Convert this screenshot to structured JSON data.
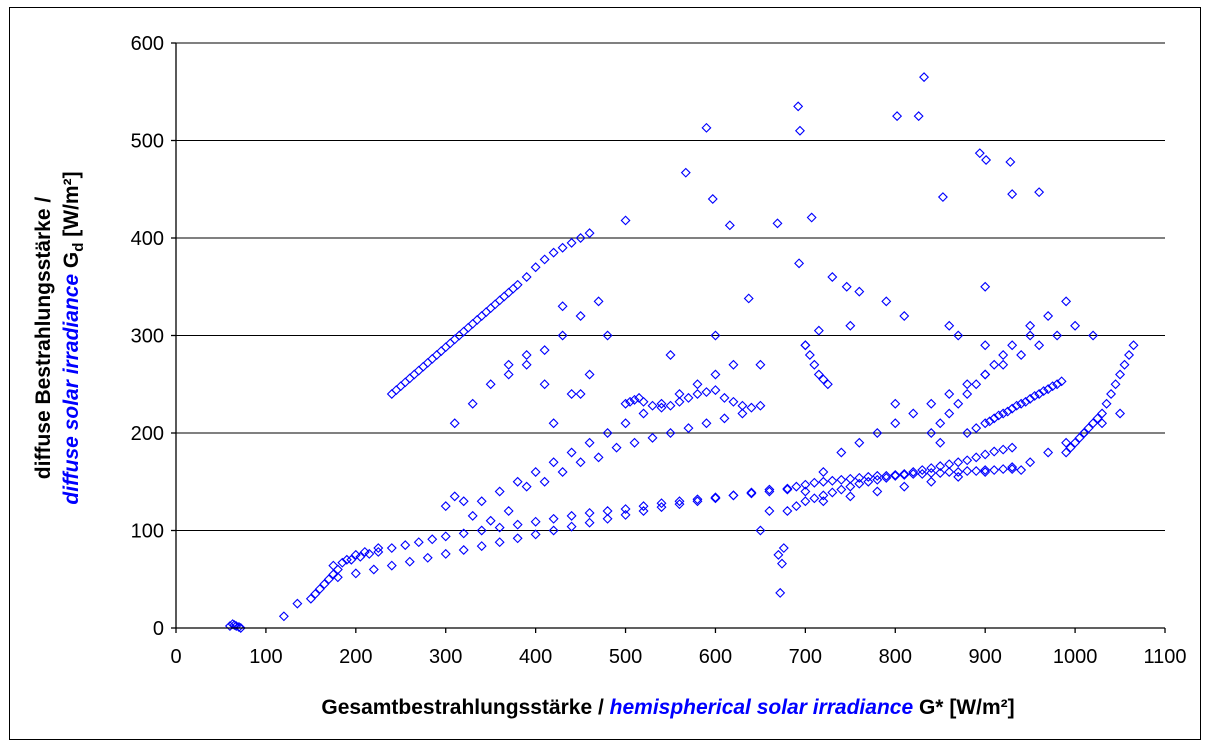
{
  "chart_data": {
    "type": "scatter",
    "title": "",
    "xlabel": {
      "part1": "Gesamtbestrahlungsstärke / ",
      "part2": "hemispherical solar irradiance",
      "part3": " G* [W/m²]"
    },
    "ylabel": {
      "line1": "diffuse Bestrahlungsstärke /",
      "line2_italic": "diffuse solar irradiance",
      "line2_symbol": " G",
      "line2_sub": "d",
      "line2_unit": " [W/m²]"
    },
    "xlim": [
      0,
      1100
    ],
    "ylim": [
      0,
      600
    ],
    "x_ticks": [
      "0",
      "100",
      "200",
      "300",
      "400",
      "500",
      "600",
      "700",
      "800",
      "900",
      "1000",
      "1100"
    ],
    "y_ticks": [
      "0",
      "100",
      "200",
      "300",
      "400",
      "500",
      "600"
    ],
    "grid": "horizontal",
    "marker": "diamond",
    "marker_color": "#0000ff",
    "series": [
      {
        "x": [
          60,
          63,
          65,
          67,
          70,
          72,
          120,
          135,
          150,
          155,
          160,
          165,
          170,
          175,
          180,
          190,
          200,
          210,
          225,
          175,
          185,
          195,
          205,
          215,
          225,
          240,
          255,
          270,
          285,
          300,
          320,
          340,
          360,
          380,
          400,
          420,
          440,
          460,
          480,
          500,
          520,
          540,
          560,
          580,
          600,
          620,
          640,
          660,
          680,
          180,
          200,
          220,
          240,
          260,
          280,
          300,
          320,
          340,
          360,
          380,
          400,
          420,
          440,
          460,
          480,
          500,
          520,
          540,
          560,
          580,
          600,
          620,
          640,
          660,
          240,
          245,
          250,
          255,
          260,
          265,
          270,
          275,
          280,
          285,
          290,
          295,
          300,
          305,
          310,
          315,
          320,
          325,
          330,
          335,
          340,
          345,
          350,
          355,
          360,
          365,
          370,
          375,
          380,
          390,
          400,
          410,
          420,
          430,
          440,
          450,
          460,
          680,
          690,
          700,
          710,
          720,
          730,
          740,
          750,
          760,
          770,
          780,
          790,
          800,
          810,
          820,
          830,
          840,
          850,
          860,
          870,
          880,
          890,
          900,
          910,
          920,
          930,
          940,
          700,
          710,
          720,
          730,
          740,
          750,
          760,
          770,
          780,
          790,
          800,
          810,
          820,
          830,
          840,
          850,
          860,
          870,
          880,
          890,
          900,
          910,
          920,
          930,
          880,
          890,
          900,
          905,
          910,
          915,
          920,
          925,
          930,
          935,
          940,
          945,
          950,
          955,
          960,
          965,
          970,
          975,
          980,
          985,
          990,
          995,
          1000,
          1005,
          1010,
          1015,
          1020,
          1025,
          1030,
          1035,
          1040,
          1045,
          1050,
          1055,
          1060,
          1065,
          500,
          505,
          510,
          515,
          520,
          530,
          540,
          550,
          560,
          570,
          580,
          590,
          600,
          610,
          620,
          630,
          640,
          650,
          700,
          705,
          710,
          715,
          720,
          725,
          840,
          850,
          860,
          870,
          880,
          890,
          900,
          910,
          920,
          930,
          590,
          692,
          694,
          832,
          826,
          802,
          567,
          597,
          707,
          616,
          500,
          894,
          901,
          928,
          930,
          960,
          853,
          669,
          693,
          637,
          715,
          730,
          746,
          760,
          790,
          810,
          860,
          870,
          900,
          950,
          970,
          990,
          310,
          330,
          350,
          370,
          390,
          410,
          430,
          450,
          470,
          420,
          440,
          460,
          480,
          340,
          360,
          380,
          400,
          420,
          440,
          460,
          480,
          500,
          520,
          540,
          560,
          580,
          600,
          620,
          650,
          680,
          700,
          720,
          740,
          760,
          780,
          800,
          820,
          840,
          860,
          880,
          900,
          920,
          940,
          960,
          980,
          1000,
          1020,
          672,
          674,
          676,
          670,
          300,
          310,
          320,
          330,
          350,
          370,
          390,
          410,
          430,
          450,
          470,
          490,
          510,
          530,
          550,
          570,
          590,
          610,
          630,
          660,
          690,
          720,
          750,
          780,
          810,
          840,
          870,
          900,
          930,
          950,
          970,
          990,
          1010,
          1030,
          1050,
          370,
          390,
          410,
          430,
          450,
          550,
          600,
          650,
          700,
          750,
          800,
          850,
          900,
          950
        ],
        "y": [
          2,
          4,
          3,
          2,
          1,
          0,
          12,
          25,
          30,
          35,
          40,
          45,
          50,
          55,
          60,
          70,
          75,
          78,
          82,
          64,
          67,
          70,
          73,
          76,
          78,
          82,
          85,
          88,
          91,
          94,
          97,
          100,
          103,
          106,
          109,
          112,
          115,
          118,
          120,
          122,
          125,
          128,
          130,
          132,
          134,
          136,
          138,
          140,
          142,
          52,
          56,
          60,
          64,
          68,
          72,
          76,
          80,
          84,
          88,
          92,
          96,
          100,
          104,
          108,
          112,
          116,
          120,
          124,
          127,
          130,
          133,
          136,
          139,
          142,
          240,
          244,
          248,
          252,
          256,
          260,
          264,
          268,
          272,
          276,
          280,
          284,
          288,
          292,
          296,
          300,
          304,
          308,
          312,
          316,
          320,
          324,
          328,
          332,
          336,
          340,
          344,
          348,
          352,
          360,
          370,
          378,
          385,
          390,
          395,
          400,
          405,
          143,
          145,
          147,
          149,
          150,
          151,
          152,
          153,
          154,
          155,
          156,
          156,
          157,
          157,
          158,
          158,
          159,
          159,
          160,
          160,
          161,
          161,
          162,
          162,
          163,
          163,
          162,
          130,
          133,
          136,
          139,
          142,
          145,
          148,
          150,
          152,
          154,
          156,
          158,
          160,
          162,
          164,
          166,
          168,
          170,
          172,
          175,
          178,
          181,
          183,
          185,
          200,
          205,
          210,
          212,
          215,
          218,
          220,
          222,
          225,
          228,
          230,
          232,
          235,
          238,
          240,
          243,
          245,
          248,
          250,
          253,
          180,
          185,
          190,
          195,
          200,
          205,
          210,
          215,
          220,
          230,
          240,
          250,
          260,
          270,
          280,
          290,
          230,
          232,
          234,
          236,
          232,
          228,
          226,
          228,
          232,
          236,
          240,
          242,
          244,
          236,
          232,
          228,
          226,
          228,
          290,
          280,
          270,
          260,
          255,
          250,
          200,
          210,
          220,
          230,
          240,
          250,
          260,
          270,
          280,
          290,
          513,
          535,
          510,
          565,
          525,
          525,
          467,
          440,
          421,
          413,
          418,
          487,
          480,
          478,
          445,
          447,
          442,
          415,
          374,
          338,
          305,
          360,
          350,
          345,
          335,
          320,
          310,
          300,
          290,
          310,
          320,
          335,
          210,
          230,
          250,
          270,
          280,
          285,
          300,
          320,
          335,
          210,
          240,
          260,
          300,
          130,
          140,
          150,
          160,
          170,
          180,
          190,
          200,
          210,
          220,
          230,
          240,
          250,
          260,
          270,
          100,
          120,
          140,
          160,
          180,
          190,
          200,
          210,
          220,
          230,
          240,
          250,
          260,
          270,
          280,
          290,
          300,
          310,
          300,
          36,
          66,
          82,
          75,
          125,
          135,
          130,
          115,
          110,
          120,
          145,
          150,
          160,
          170,
          175,
          185,
          190,
          195,
          200,
          205,
          210,
          215,
          220,
          120,
          125,
          130,
          135,
          140,
          145,
          150,
          155,
          160,
          165,
          170,
          180,
          190,
          200,
          210,
          220,
          260,
          270,
          250,
          330,
          240,
          280,
          300,
          270,
          290,
          310,
          230,
          190,
          350,
          300
        ]
      }
    ]
  }
}
